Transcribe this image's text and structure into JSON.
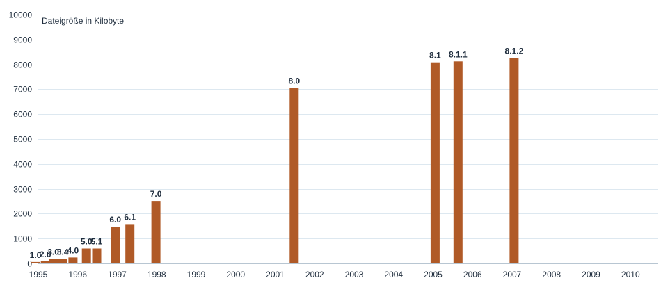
{
  "chart_data": {
    "type": "bar",
    "title": "Dateigröße in Kilobyte",
    "xlabel": "",
    "ylabel": "",
    "ylim": [
      0,
      10000
    ],
    "yticks": [
      0,
      1000,
      2000,
      3000,
      4000,
      5000,
      6000,
      7000,
      8000,
      9000,
      10000
    ],
    "xlim": [
      1995,
      2010.7
    ],
    "xticks": [
      1995,
      1996,
      1997,
      1998,
      1999,
      2000,
      2001,
      2002,
      2003,
      2004,
      2005,
      2006,
      2007,
      2008,
      2009,
      2010
    ],
    "bar_color": "#b05a27",
    "grid": true,
    "legend": "none",
    "bars": [
      {
        "label": "1.0",
        "x": 1994.93,
        "value": 60
      },
      {
        "label": "2.0",
        "x": 1995.18,
        "value": 90
      },
      {
        "label": "3.0",
        "x": 1995.38,
        "value": 180
      },
      {
        "label": "3.4",
        "x": 1995.62,
        "value": 180
      },
      {
        "label": "4.0",
        "x": 1995.88,
        "value": 240
      },
      {
        "label": "5.0",
        "x": 1996.22,
        "value": 600
      },
      {
        "label": "5.1",
        "x": 1996.48,
        "value": 600
      },
      {
        "label": "6.0",
        "x": 1996.95,
        "value": 1480
      },
      {
        "label": "6.1",
        "x": 1997.32,
        "value": 1580
      },
      {
        "label": "7.0",
        "x": 1997.98,
        "value": 2510
      },
      {
        "label": "8.0",
        "x": 2001.48,
        "value": 7060
      },
      {
        "label": "8.1",
        "x": 2005.05,
        "value": 8080
      },
      {
        "label": "8.1.1",
        "x": 2005.63,
        "value": 8120
      },
      {
        "label": "8.1.2",
        "x": 2007.05,
        "value": 8250
      }
    ]
  }
}
